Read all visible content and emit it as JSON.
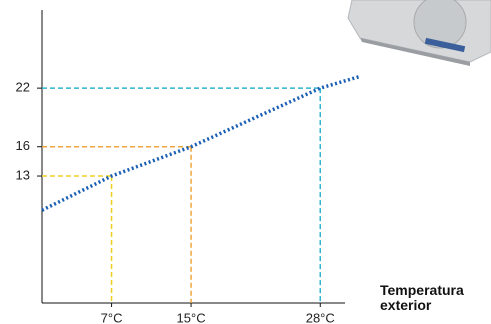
{
  "chart_data": {
    "type": "line",
    "x": [
      0,
      7,
      15,
      28,
      32
    ],
    "series": [
      {
        "color": "#1a5fb4",
        "values": [
          9.5,
          13,
          16,
          22,
          23.2
        ]
      }
    ],
    "xlim": [
      0,
      32
    ],
    "ylim": [
      0,
      30
    ],
    "xticks": [
      {
        "value": 7,
        "label": "7°C"
      },
      {
        "value": 15,
        "label": "15°C"
      },
      {
        "value": 28,
        "label": "28°C"
      }
    ],
    "yticks": [
      13,
      16,
      22
    ],
    "guide_colors": [
      "#f2cf1f",
      "#f0a53a",
      "#2fb3d1"
    ],
    "xlabel": "Temperatura exterior"
  }
}
